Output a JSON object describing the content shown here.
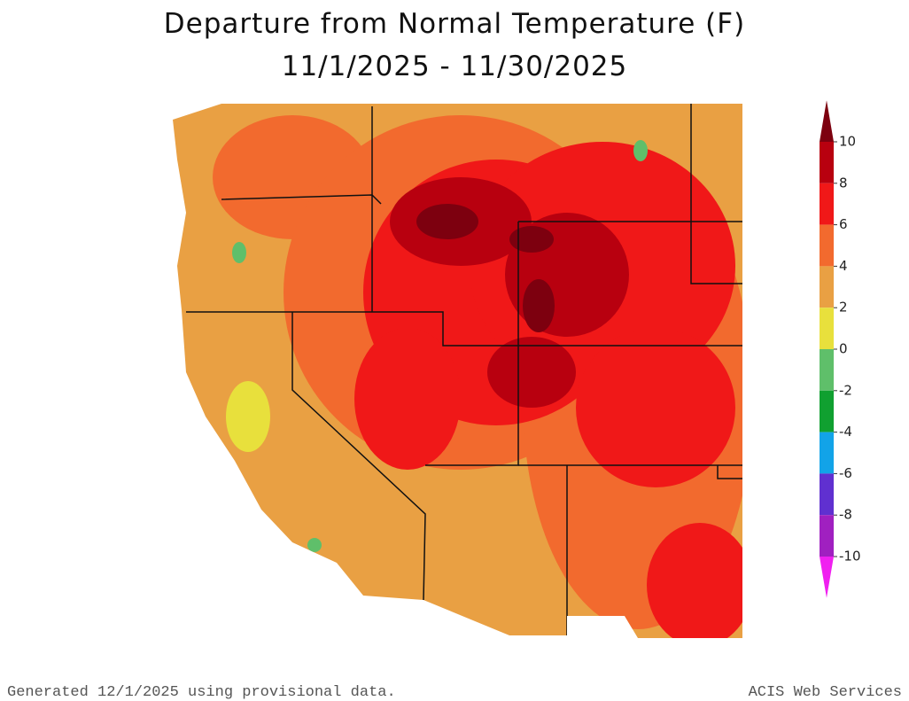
{
  "title": [
    "Departure from Normal Temperature (F)",
    "11/1/2025 - 11/30/2025"
  ],
  "legend": {
    "ticks": [
      10,
      8,
      6,
      4,
      2,
      0,
      -2,
      -4,
      -6,
      -8,
      -10
    ],
    "colors": [
      "#7d000f",
      "#b8000f",
      "#f01818",
      "#f26a2e",
      "#e9a043",
      "#e8e03c",
      "#5fbf6a",
      "#10a030",
      "#12a3e8",
      "#6030d0",
      "#a020c0",
      "#f020f0"
    ]
  },
  "footer": {
    "left": "Generated 12/1/2025 using provisional data.",
    "right": "ACIS Web Services"
  }
}
